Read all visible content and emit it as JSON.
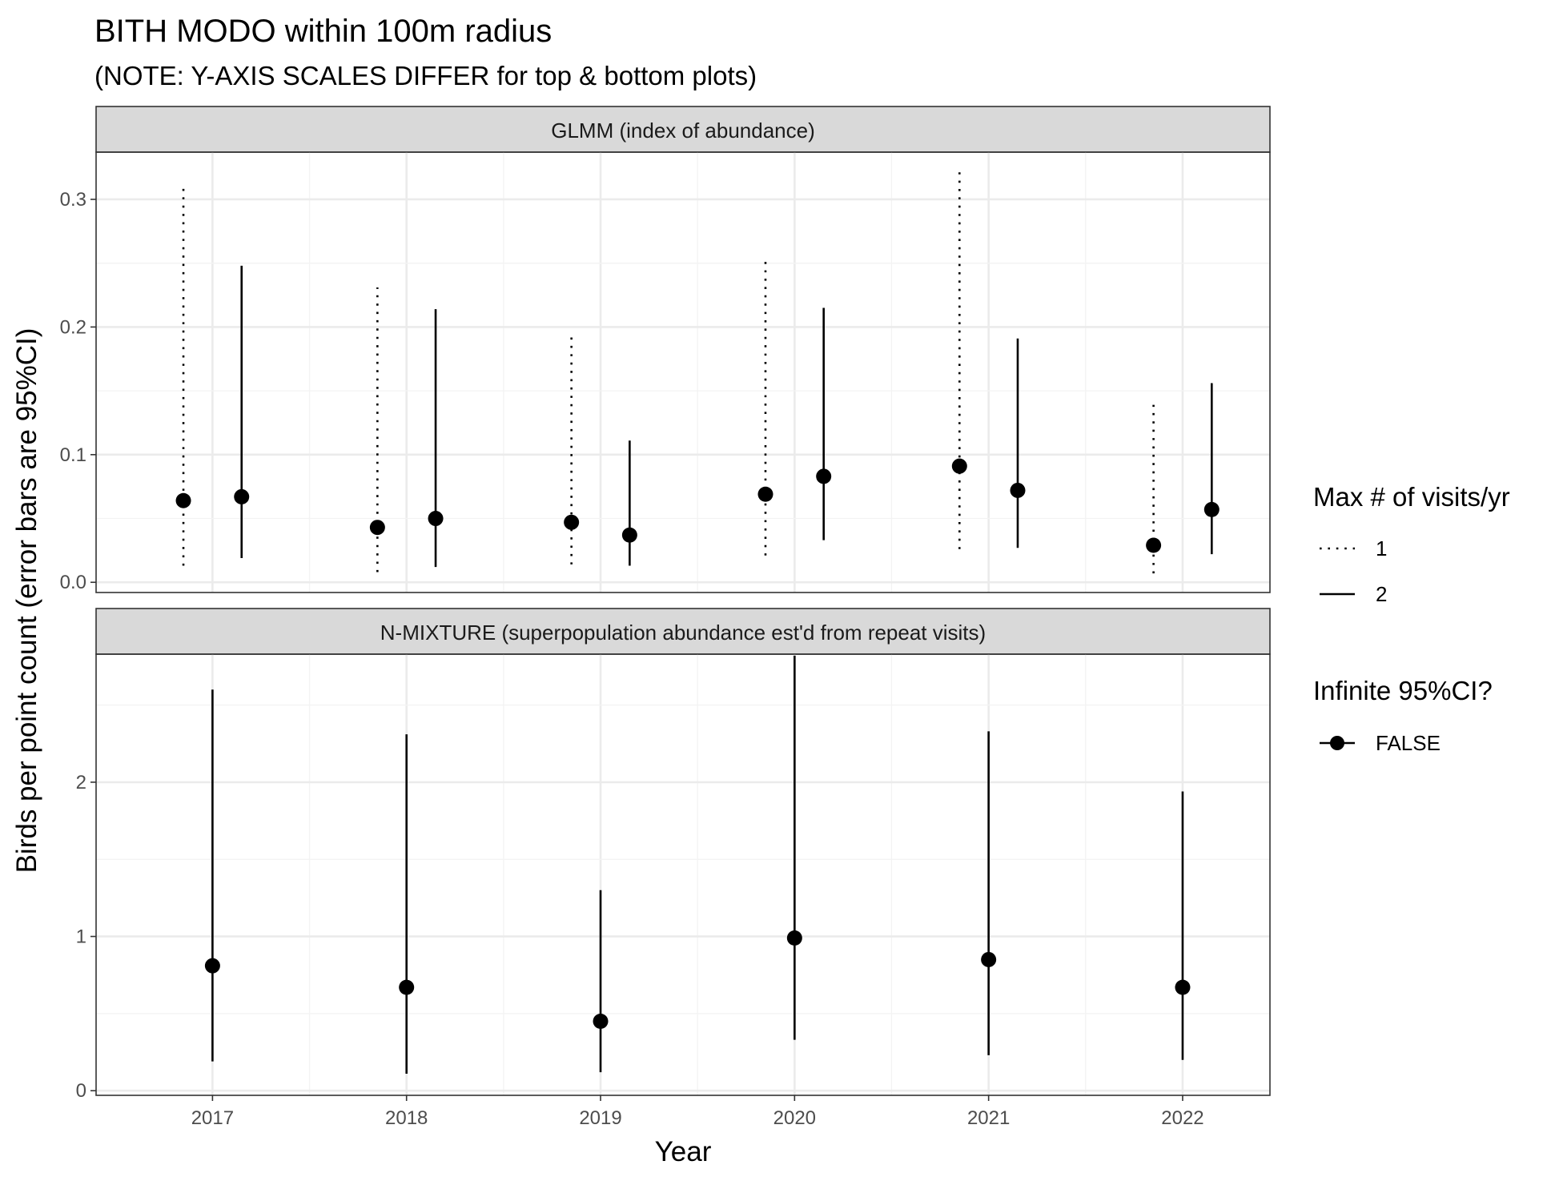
{
  "title": "BITH MODO within 100m radius",
  "subtitle": "(NOTE: Y-AXIS SCALES DIFFER for top & bottom plots)",
  "xlabel": "Year",
  "ylabel": "Birds per point count (error bars are 95%CI)",
  "legend": {
    "visits_title": "Max # of visits/yr",
    "visits_items": [
      {
        "label": "1",
        "linetype": "dotted"
      },
      {
        "label": "2",
        "linetype": "solid"
      }
    ],
    "infinite_title": "Infinite 95%CI?",
    "infinite_items": [
      {
        "label": "FALSE"
      }
    ]
  },
  "chart_data": [
    {
      "type": "scatter",
      "panel": "GLMM (index of abundance)",
      "xlabel": "Year",
      "ylabel": "Birds per point count (error bars are 95%CI)",
      "x_categories": [
        "2017",
        "2018",
        "2019",
        "2020",
        "2021",
        "2022"
      ],
      "y_ticks": [
        "0.0",
        "0.1",
        "0.2",
        "0.3"
      ],
      "ylim": [
        -0.008,
        0.337
      ],
      "grid": true,
      "series": [
        {
          "name": "1",
          "linetype": "dotted",
          "points": [
            {
              "x": "2017",
              "y": 0.064,
              "lower": 0.013,
              "upper": 0.31
            },
            {
              "x": "2018",
              "y": 0.043,
              "lower": 0.008,
              "upper": 0.231
            },
            {
              "x": "2019",
              "y": 0.047,
              "lower": 0.014,
              "upper": 0.192
            },
            {
              "x": "2020",
              "y": 0.069,
              "lower": 0.021,
              "upper": 0.252
            },
            {
              "x": "2021",
              "y": 0.091,
              "lower": 0.026,
              "upper": 0.323
            },
            {
              "x": "2022",
              "y": 0.029,
              "lower": 0.007,
              "upper": 0.139
            }
          ]
        },
        {
          "name": "2",
          "linetype": "solid",
          "points": [
            {
              "x": "2017",
              "y": 0.067,
              "lower": 0.019,
              "upper": 0.248
            },
            {
              "x": "2018",
              "y": 0.05,
              "lower": 0.012,
              "upper": 0.214
            },
            {
              "x": "2019",
              "y": 0.037,
              "lower": 0.013,
              "upper": 0.111
            },
            {
              "x": "2020",
              "y": 0.083,
              "lower": 0.033,
              "upper": 0.215
            },
            {
              "x": "2021",
              "y": 0.072,
              "lower": 0.027,
              "upper": 0.191
            },
            {
              "x": "2022",
              "y": 0.057,
              "lower": 0.022,
              "upper": 0.156
            }
          ]
        }
      ]
    },
    {
      "type": "scatter",
      "panel": "N-MIXTURE (superpopulation abundance est'd from repeat visits)",
      "xlabel": "Year",
      "ylabel": "Birds per point count (error bars are 95%CI)",
      "x_categories": [
        "2017",
        "2018",
        "2019",
        "2020",
        "2021",
        "2022"
      ],
      "y_ticks": [
        "0",
        "1",
        "2"
      ],
      "ylim": [
        -0.03,
        2.83
      ],
      "grid": true,
      "series": [
        {
          "name": "2",
          "linetype": "solid",
          "points": [
            {
              "x": "2017",
              "y": 0.81,
              "lower": 0.19,
              "upper": 2.6
            },
            {
              "x": "2018",
              "y": 0.67,
              "lower": 0.11,
              "upper": 2.31
            },
            {
              "x": "2019",
              "y": 0.45,
              "lower": 0.12,
              "upper": 1.3
            },
            {
              "x": "2020",
              "y": 0.99,
              "lower": 0.33,
              "upper": 2.82
            },
            {
              "x": "2021",
              "y": 0.85,
              "lower": 0.23,
              "upper": 2.33
            },
            {
              "x": "2022",
              "y": 0.67,
              "lower": 0.2,
              "upper": 1.94
            }
          ]
        }
      ]
    }
  ]
}
